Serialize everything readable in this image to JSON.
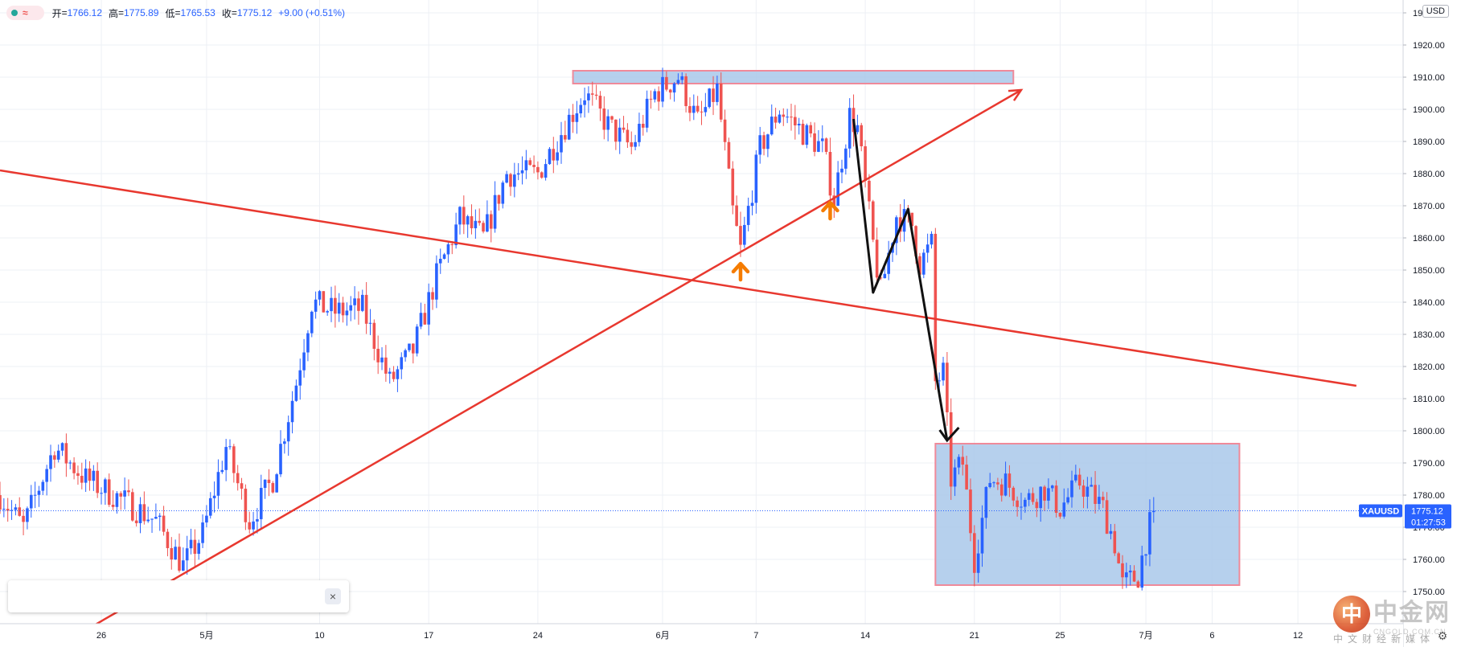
{
  "header": {
    "open_label": "开",
    "open": "1766.12",
    "high_label": "高",
    "high": "1775.89",
    "low_label": "低",
    "low": "1765.53",
    "close_label": "收",
    "close": "1775.12",
    "change": "+9.00 (+0.51%)",
    "wave_icon": "≈"
  },
  "currency_label": "USD",
  "price_tag": {
    "symbol": "XAUUSD",
    "price": "1775.12",
    "countdown": "01:27:53"
  },
  "popup": {
    "close_icon": "×"
  },
  "watermark": {
    "logo_text": "中",
    "brand": "中金网",
    "url": "CNGOLD.COM.CN",
    "tagline": "中文财经新媒体"
  },
  "colors": {
    "up": "#2962ff",
    "down": "#ef5350",
    "trendline": "#e8382f",
    "zone_fill": "#a9c8ea",
    "zone_border": "#ef8a9a",
    "arrow": "#f57c00",
    "grid": "#edf0f5",
    "tag_bg": "#2962ff"
  },
  "chart_data": {
    "type": "candlestick",
    "symbol": "XAUUSD",
    "y_ticks": [
      1750,
      1760,
      1770,
      1780,
      1790,
      1800,
      1810,
      1820,
      1830,
      1840,
      1850,
      1860,
      1870,
      1880,
      1890,
      1900,
      1910,
      1920,
      1930
    ],
    "y_tick_labels": [
      "1750.00",
      "1760.00",
      "1770.00",
      "1780.00",
      "1790.00",
      "1800.00",
      "1810.00",
      "1820.00",
      "1830.00",
      "1840.00",
      "1850.00",
      "1860.00",
      "1870.00",
      "1880.00",
      "1890.00",
      "1900.00",
      "1910.00",
      "1920.00",
      "1930.00"
    ],
    "ylim": [
      1740,
      1934
    ],
    "x_range_bars": [
      0,
      360
    ],
    "x_ticks": [
      {
        "bar": 26,
        "label": "26"
      },
      {
        "bar": 53,
        "label": "5月"
      },
      {
        "bar": 82,
        "label": "10"
      },
      {
        "bar": 110,
        "label": "17"
      },
      {
        "bar": 138,
        "label": "24"
      },
      {
        "bar": 170,
        "label": "6月"
      },
      {
        "bar": 194,
        "label": "7"
      },
      {
        "bar": 222,
        "label": "14"
      },
      {
        "bar": 250,
        "label": "21"
      },
      {
        "bar": 272,
        "label": "25"
      },
      {
        "bar": 294,
        "label": "7月"
      },
      {
        "bar": 311,
        "label": "6"
      },
      {
        "bar": 333,
        "label": "12"
      }
    ],
    "last_price": 1775.12,
    "anchors": [
      {
        "bar": 0,
        "price": 1780
      },
      {
        "bar": 6,
        "price": 1770
      },
      {
        "bar": 14,
        "price": 1795
      },
      {
        "bar": 22,
        "price": 1785
      },
      {
        "bar": 32,
        "price": 1778
      },
      {
        "bar": 40,
        "price": 1772
      },
      {
        "bar": 47,
        "price": 1758
      },
      {
        "bar": 52,
        "price": 1768
      },
      {
        "bar": 58,
        "price": 1795
      },
      {
        "bar": 64,
        "price": 1772
      },
      {
        "bar": 70,
        "price": 1785
      },
      {
        "bar": 76,
        "price": 1815
      },
      {
        "bar": 80,
        "price": 1840
      },
      {
        "bar": 86,
        "price": 1837
      },
      {
        "bar": 93,
        "price": 1838
      },
      {
        "bar": 100,
        "price": 1815
      },
      {
        "bar": 106,
        "price": 1825
      },
      {
        "bar": 112,
        "price": 1848
      },
      {
        "bar": 118,
        "price": 1866
      },
      {
        "bar": 124,
        "price": 1860
      },
      {
        "bar": 130,
        "price": 1880
      },
      {
        "bar": 138,
        "price": 1880
      },
      {
        "bar": 145,
        "price": 1895
      },
      {
        "bar": 150,
        "price": 1905
      },
      {
        "bar": 156,
        "price": 1895
      },
      {
        "bar": 162,
        "price": 1888
      },
      {
        "bar": 168,
        "price": 1905
      },
      {
        "bar": 174,
        "price": 1910
      },
      {
        "bar": 179,
        "price": 1896
      },
      {
        "bar": 184,
        "price": 1906
      },
      {
        "bar": 188,
        "price": 1868
      },
      {
        "bar": 190,
        "price": 1856
      },
      {
        "bar": 195,
        "price": 1888
      },
      {
        "bar": 200,
        "price": 1900
      },
      {
        "bar": 206,
        "price": 1893
      },
      {
        "bar": 211,
        "price": 1888
      },
      {
        "bar": 214,
        "price": 1872
      },
      {
        "bar": 218,
        "price": 1898
      },
      {
        "bar": 220,
        "price": 1894
      },
      {
        "bar": 224,
        "price": 1858
      },
      {
        "bar": 226,
        "price": 1843
      },
      {
        "bar": 230,
        "price": 1867
      },
      {
        "bar": 234,
        "price": 1864
      },
      {
        "bar": 236,
        "price": 1852
      },
      {
        "bar": 239,
        "price": 1858
      },
      {
        "bar": 240,
        "price": 1815
      },
      {
        "bar": 242,
        "price": 1818
      },
      {
        "bar": 244,
        "price": 1785
      },
      {
        "bar": 247,
        "price": 1790
      },
      {
        "bar": 250,
        "price": 1760
      },
      {
        "bar": 254,
        "price": 1785
      },
      {
        "bar": 258,
        "price": 1784
      },
      {
        "bar": 263,
        "price": 1778
      },
      {
        "bar": 268,
        "price": 1782
      },
      {
        "bar": 272,
        "price": 1776
      },
      {
        "bar": 277,
        "price": 1784
      },
      {
        "bar": 283,
        "price": 1776
      },
      {
        "bar": 286,
        "price": 1765
      },
      {
        "bar": 288,
        "price": 1752
      },
      {
        "bar": 292,
        "price": 1755
      },
      {
        "bar": 294,
        "price": 1766
      },
      {
        "bar": 296,
        "price": 1775
      }
    ],
    "drawings": {
      "trendline_down": {
        "from": {
          "bar": 0,
          "price": 1881
        },
        "to": {
          "bar": 348,
          "price": 1814
        }
      },
      "trendline_up_arrow": {
        "from": {
          "bar": 12,
          "price": 1731
        },
        "to": {
          "bar": 262,
          "price": 1906
        }
      },
      "resistance_zone": {
        "bar_from": 147,
        "bar_to": 260,
        "price_top": 1912,
        "price_bottom": 1908
      },
      "support_zone": {
        "bar_from": 240,
        "bar_to": 318,
        "price_top": 1796,
        "price_bottom": 1752
      },
      "zigzag_arrow": [
        {
          "bar": 219,
          "price": 1897
        },
        {
          "bar": 224,
          "price": 1843
        },
        {
          "bar": 233,
          "price": 1869
        },
        {
          "bar": 243,
          "price": 1797
        },
        {
          "bar": 246,
          "price": 1801
        }
      ],
      "up_arrows": [
        {
          "bar": 190,
          "price": 1850
        },
        {
          "bar": 213,
          "price": 1869
        }
      ]
    }
  }
}
